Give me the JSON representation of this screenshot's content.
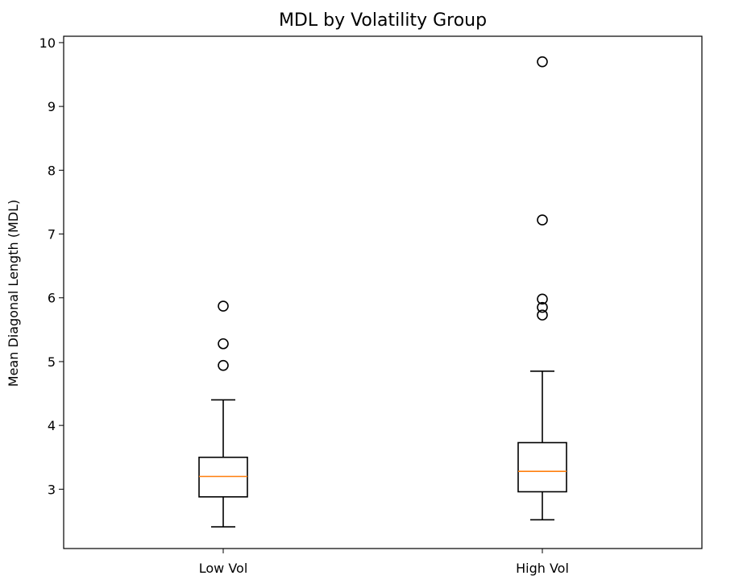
{
  "chart_data": {
    "type": "boxplot",
    "title": "MDL by Volatility Group",
    "xlabel": "",
    "ylabel": "Mean Diagonal Length (MDL)",
    "categories": [
      "Low Vol",
      "High Vol"
    ],
    "ylim": [
      2.07,
      10.1
    ],
    "yticks": [
      3,
      4,
      5,
      6,
      7,
      8,
      9,
      10
    ],
    "grid": false,
    "legend": "none",
    "boxes": [
      {
        "category": "Low Vol",
        "whisker_low": 2.41,
        "q1": 2.88,
        "median": 3.2,
        "q3": 3.5,
        "whisker_high": 4.4,
        "outliers": [
          4.94,
          5.28,
          5.87
        ]
      },
      {
        "category": "High Vol",
        "whisker_low": 2.52,
        "q1": 2.96,
        "median": 3.28,
        "q3": 3.73,
        "whisker_high": 4.85,
        "outliers": [
          5.73,
          5.85,
          5.98,
          7.22,
          9.7
        ]
      }
    ],
    "colors": {
      "box": "#000000",
      "median": "#ff7f0e",
      "outlier_edge": "#000000"
    }
  }
}
